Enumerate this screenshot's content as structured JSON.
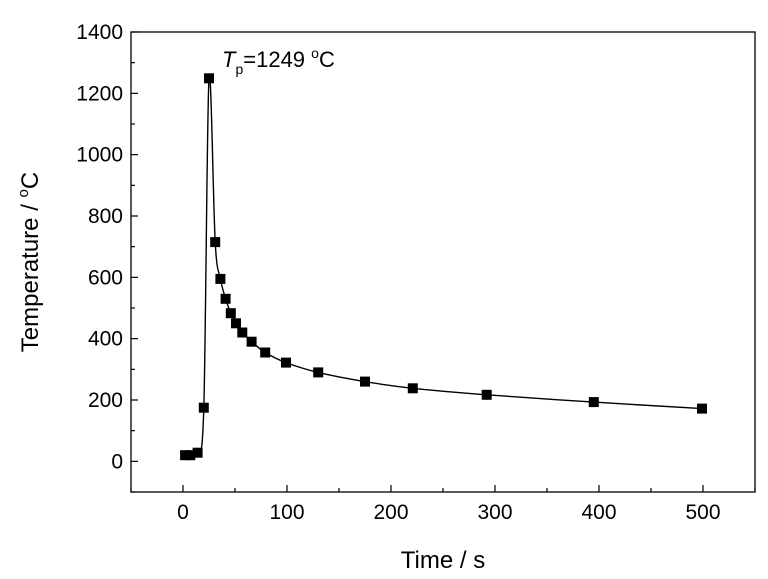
{
  "chart_data": {
    "type": "line",
    "xlabel": "Time / s",
    "ylabel_text": "Temperature / ",
    "ylabel_sup": "o",
    "ylabel_unit": "C",
    "xlim": [
      -50,
      550
    ],
    "ylim": [
      -100,
      1400
    ],
    "xticks": [
      0,
      100,
      200,
      300,
      400,
      500
    ],
    "yticks": [
      0,
      200,
      400,
      600,
      800,
      1000,
      1200,
      1400
    ],
    "grid": false,
    "series": [
      {
        "marker": "square",
        "color": "#000000",
        "points": [
          {
            "x": 2,
            "y": 20
          },
          {
            "x": 7,
            "y": 20
          },
          {
            "x": 14,
            "y": 28
          },
          {
            "x": 20,
            "y": 175
          },
          {
            "x": 25,
            "y": 1249
          },
          {
            "x": 31,
            "y": 715
          },
          {
            "x": 36,
            "y": 595
          },
          {
            "x": 41,
            "y": 530
          },
          {
            "x": 46,
            "y": 483
          },
          {
            "x": 51,
            "y": 450
          },
          {
            "x": 57,
            "y": 420
          },
          {
            "x": 66,
            "y": 390
          },
          {
            "x": 79,
            "y": 355
          },
          {
            "x": 99,
            "y": 322
          },
          {
            "x": 130,
            "y": 290
          },
          {
            "x": 175,
            "y": 260
          },
          {
            "x": 221,
            "y": 238
          },
          {
            "x": 292,
            "y": 217
          },
          {
            "x": 395,
            "y": 193
          },
          {
            "x": 499,
            "y": 172
          }
        ]
      }
    ],
    "annotation": {
      "prefix": "T",
      "subscript": "p",
      "value": "=1249 ",
      "sup": "o",
      "unit": "C",
      "anchor_x": 25,
      "anchor_y": 1249
    }
  }
}
